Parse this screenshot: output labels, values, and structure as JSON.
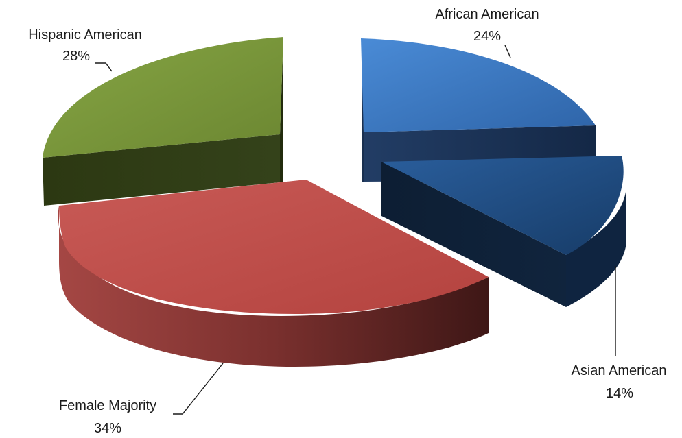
{
  "chart_data": {
    "type": "pie",
    "title": "",
    "exploded": true,
    "three_d": true,
    "slices": [
      {
        "label": "African American",
        "value": 24,
        "percent_text": "24%",
        "color": "#3a77c2",
        "side_color": "#1c3357"
      },
      {
        "label": "Asian American",
        "value": 14,
        "percent_text": "14%",
        "color": "#1e4c82",
        "side_color": "#0e2036"
      },
      {
        "label": "Female Majority",
        "value": 34,
        "percent_text": "34%",
        "color": "#bd4f4c",
        "side_color": "#7a302e"
      },
      {
        "label": "Hispanic American",
        "value": 28,
        "percent_text": "28%",
        "color": "#7a963b",
        "side_color": "#2f3b14"
      }
    ],
    "legend": "none"
  }
}
